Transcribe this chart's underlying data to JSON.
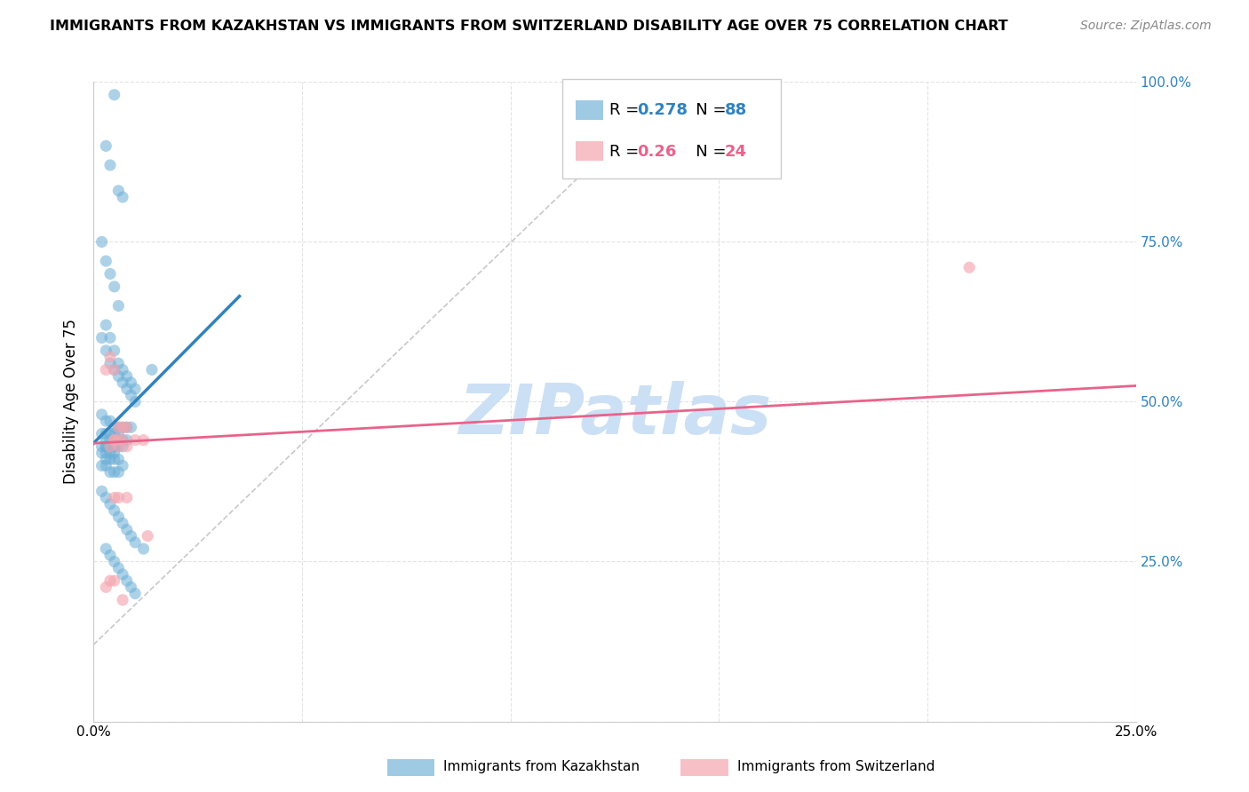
{
  "title": "IMMIGRANTS FROM KAZAKHSTAN VS IMMIGRANTS FROM SWITZERLAND DISABILITY AGE OVER 75 CORRELATION CHART",
  "source": "Source: ZipAtlas.com",
  "ylabel_label": "Disability Age Over 75",
  "x_min": 0.0,
  "x_max": 0.25,
  "y_min": 0.0,
  "y_max": 1.0,
  "x_ticks": [
    0.0,
    0.05,
    0.1,
    0.15,
    0.2,
    0.25
  ],
  "x_tick_labels": [
    "0.0%",
    "",
    "",
    "",
    "",
    "25.0%"
  ],
  "y_ticks_right": [
    0.0,
    0.25,
    0.5,
    0.75,
    1.0
  ],
  "y_tick_labels_right": [
    "",
    "25.0%",
    "50.0%",
    "75.0%",
    "100.0%"
  ],
  "kaz_color": "#6baed6",
  "swiss_color": "#f4a6b0",
  "kaz_R": 0.278,
  "kaz_N": 88,
  "swiss_R": 0.26,
  "swiss_N": 24,
  "kaz_scatter_x": [
    0.005,
    0.003,
    0.004,
    0.006,
    0.007,
    0.002,
    0.003,
    0.004,
    0.005,
    0.006,
    0.003,
    0.004,
    0.005,
    0.006,
    0.007,
    0.008,
    0.009,
    0.01,
    0.002,
    0.003,
    0.004,
    0.005,
    0.006,
    0.007,
    0.008,
    0.009,
    0.01,
    0.002,
    0.003,
    0.004,
    0.005,
    0.006,
    0.007,
    0.008,
    0.009,
    0.002,
    0.003,
    0.004,
    0.005,
    0.006,
    0.003,
    0.004,
    0.005,
    0.006,
    0.007,
    0.008,
    0.002,
    0.003,
    0.004,
    0.005,
    0.003,
    0.004,
    0.005,
    0.006,
    0.007,
    0.002,
    0.003,
    0.004,
    0.005,
    0.003,
    0.004,
    0.005,
    0.006,
    0.007,
    0.002,
    0.003,
    0.004,
    0.005,
    0.006,
    0.014,
    0.002,
    0.003,
    0.004,
    0.005,
    0.006,
    0.007,
    0.008,
    0.009,
    0.01,
    0.012,
    0.003,
    0.004,
    0.005,
    0.006,
    0.007,
    0.008,
    0.009,
    0.01
  ],
  "kaz_scatter_y": [
    0.98,
    0.9,
    0.87,
    0.83,
    0.82,
    0.75,
    0.72,
    0.7,
    0.68,
    0.65,
    0.62,
    0.6,
    0.58,
    0.56,
    0.55,
    0.54,
    0.53,
    0.52,
    0.6,
    0.58,
    0.56,
    0.55,
    0.54,
    0.53,
    0.52,
    0.51,
    0.5,
    0.48,
    0.47,
    0.47,
    0.46,
    0.46,
    0.46,
    0.46,
    0.46,
    0.45,
    0.45,
    0.45,
    0.45,
    0.45,
    0.44,
    0.44,
    0.44,
    0.44,
    0.44,
    0.44,
    0.43,
    0.43,
    0.43,
    0.43,
    0.43,
    0.43,
    0.43,
    0.43,
    0.43,
    0.42,
    0.42,
    0.42,
    0.42,
    0.41,
    0.41,
    0.41,
    0.41,
    0.4,
    0.4,
    0.4,
    0.39,
    0.39,
    0.39,
    0.55,
    0.36,
    0.35,
    0.34,
    0.33,
    0.32,
    0.31,
    0.3,
    0.29,
    0.28,
    0.27,
    0.27,
    0.26,
    0.25,
    0.24,
    0.23,
    0.22,
    0.21,
    0.2
  ],
  "swiss_scatter_x": [
    0.003,
    0.004,
    0.005,
    0.006,
    0.007,
    0.008,
    0.005,
    0.006,
    0.004,
    0.005,
    0.006,
    0.007,
    0.008,
    0.01,
    0.012,
    0.013,
    0.005,
    0.006,
    0.008,
    0.21,
    0.005,
    0.004,
    0.003,
    0.007
  ],
  "swiss_scatter_y": [
    0.55,
    0.57,
    0.55,
    0.46,
    0.46,
    0.46,
    0.44,
    0.44,
    0.43,
    0.44,
    0.43,
    0.44,
    0.43,
    0.44,
    0.44,
    0.29,
    0.35,
    0.35,
    0.35,
    0.71,
    0.22,
    0.22,
    0.21,
    0.19
  ],
  "watermark": "ZIPatlas",
  "watermark_color": "#cce0f5",
  "grid_color": "#e0e0e0",
  "kaz_line_color": "#3182bd",
  "swiss_line_color": "#e8638a",
  "diagonal_color": "#bbbbbb",
  "kaz_line_x0": 0.0,
  "kaz_line_x1": 0.035,
  "kaz_line_y0": 0.435,
  "kaz_line_y1": 0.665,
  "swiss_line_x0": 0.0,
  "swiss_line_x1": 0.25,
  "swiss_line_y0": 0.435,
  "swiss_line_y1": 0.525
}
